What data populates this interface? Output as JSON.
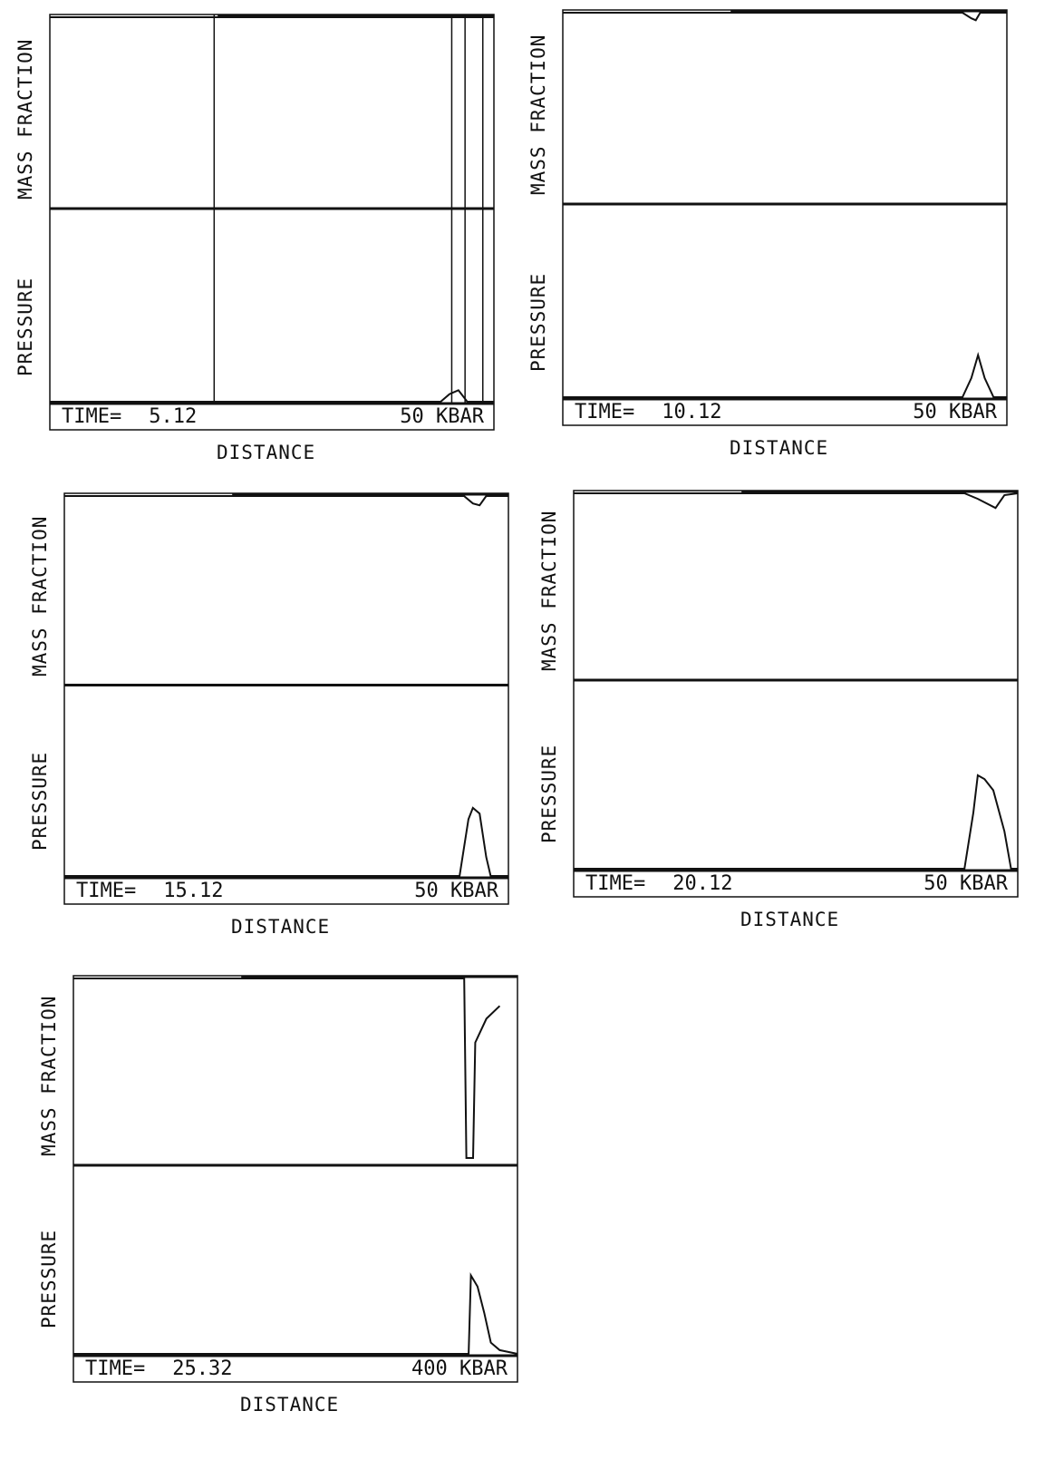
{
  "chart_data": [
    {
      "type": "line",
      "ylabel_top": "MASS FRACTION",
      "ylabel_bottom": "PRESSURE",
      "xlabel": "DISTANCE",
      "time_label": "TIME=",
      "time_value": "5.12",
      "scale_label": "50 KBAR",
      "series": [
        {
          "x": [
            0,
            0.5,
            0.9,
            0.91,
            0.93,
            0.94,
            1.0
          ],
          "values": [
            1,
            1,
            1,
            1,
            1,
            1,
            1
          ]
        },
        {
          "x": [
            0,
            0.5,
            0.88,
            0.9,
            0.92,
            0.94,
            1.0
          ],
          "values": [
            0,
            0,
            0,
            0.04,
            0.06,
            0,
            0
          ]
        }
      ]
    },
    {
      "type": "line",
      "ylabel_top": "MASS FRACTION",
      "ylabel_bottom": "PRESSURE",
      "xlabel": "DISTANCE",
      "time_label": "TIME=",
      "time_value": "10.12",
      "scale_label": "50 KBAR",
      "series": [
        {
          "x": [
            0,
            0.9,
            0.92,
            0.93,
            0.94,
            1.0
          ],
          "values": [
            1,
            1,
            0.97,
            0.96,
            1,
            1
          ]
        },
        {
          "x": [
            0,
            0.9,
            0.92,
            0.935,
            0.95,
            0.97,
            1.0
          ],
          "values": [
            0,
            0,
            0.1,
            0.22,
            0.1,
            0,
            0
          ]
        }
      ]
    },
    {
      "type": "line",
      "ylabel_top": "MASS FRACTION",
      "ylabel_bottom": "PRESSURE",
      "xlabel": "DISTANCE",
      "time_label": "TIME=",
      "time_value": "15.12",
      "scale_label": "50 KBAR",
      "series": [
        {
          "x": [
            0,
            0.9,
            0.92,
            0.935,
            0.95,
            1.0
          ],
          "values": [
            1,
            1,
            0.96,
            0.95,
            1,
            1
          ]
        },
        {
          "x": [
            0,
            0.89,
            0.91,
            0.92,
            0.935,
            0.95,
            0.96,
            1.0
          ],
          "values": [
            0,
            0,
            0.3,
            0.36,
            0.33,
            0.1,
            0,
            0
          ]
        }
      ]
    },
    {
      "type": "line",
      "ylabel_top": "MASS FRACTION",
      "ylabel_bottom": "PRESSURE",
      "xlabel": "DISTANCE",
      "time_label": "TIME=",
      "time_value": "20.12",
      "scale_label": "50 KBAR",
      "series": [
        {
          "x": [
            0,
            0.88,
            0.91,
            0.95,
            0.97,
            1.0
          ],
          "values": [
            1,
            1,
            0.97,
            0.92,
            0.99,
            1
          ]
        },
        {
          "x": [
            0,
            0.88,
            0.9,
            0.91,
            0.925,
            0.945,
            0.97,
            0.985,
            1.0
          ],
          "values": [
            0,
            0,
            0.3,
            0.5,
            0.48,
            0.42,
            0.2,
            0,
            0
          ]
        }
      ]
    },
    {
      "type": "line",
      "ylabel_top": "MASS FRACTION",
      "ylabel_bottom": "PRESSURE",
      "xlabel": "DISTANCE",
      "time_label": "TIME=",
      "time_value": "25.32",
      "scale_label": "400 KBAR",
      "series": [
        {
          "x": [
            0,
            0.88,
            0.885,
            0.9,
            0.905,
            0.93,
            0.96
          ],
          "values": [
            1,
            1,
            0.02,
            0.02,
            0.65,
            0.78,
            0.85
          ]
        },
        {
          "x": [
            0,
            0.89,
            0.895,
            0.91,
            0.925,
            0.94,
            0.96,
            1.0
          ],
          "values": [
            0,
            0,
            0.42,
            0.36,
            0.22,
            0.06,
            0.02,
            0
          ]
        }
      ]
    }
  ]
}
